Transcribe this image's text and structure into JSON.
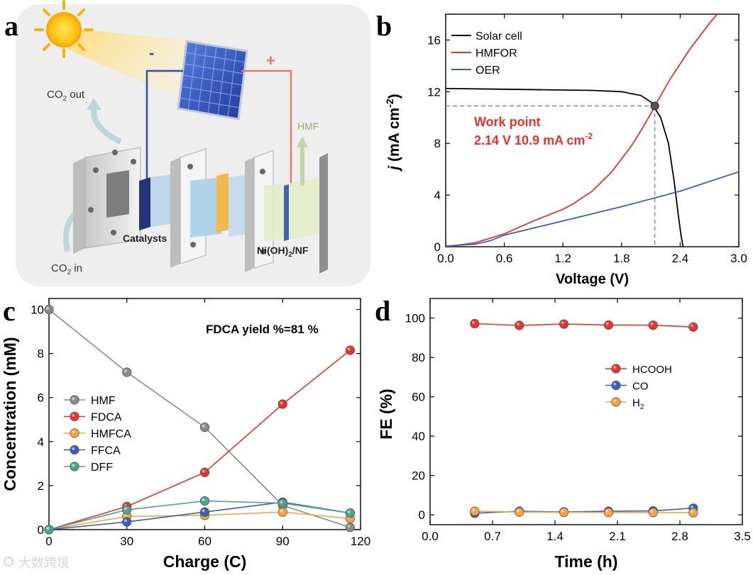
{
  "panels": {
    "a": "a",
    "b": "b",
    "c": "c",
    "d": "d"
  },
  "schematic": {
    "minus": "-",
    "plus": "+",
    "co2_out": "CO",
    "co2_out_sub": "2",
    "co2_out_tail": " out",
    "co2_in": "CO",
    "co2_in_sub": "2",
    "co2_in_tail": " in",
    "hmf": "HMF",
    "catalysts": "Catalysts",
    "ni_label_a": "Ni(OH)",
    "ni_label_sub": "2",
    "ni_label_b": "/NF"
  },
  "watermark": "大数跨境",
  "colors": {
    "black": "#000000",
    "red": "#e8322b",
    "blue": "#3a5fb5",
    "gray": "#8a8a8a",
    "orange": "#f4a540",
    "teal": "#4aa58f"
  },
  "chart_data": [
    {
      "id": "b",
      "type": "line",
      "xlabel": "Voltage (V)",
      "ylabel_italic": "j",
      "ylabel_rest": " (mA cm",
      "ylabel_sup": "-2",
      "ylabel_close": ")",
      "xlim": [
        0.0,
        3.0
      ],
      "ylim": [
        0,
        18
      ],
      "xticks": [
        "0.0",
        "0.6",
        "1.2",
        "1.8",
        "2.4",
        "3.0"
      ],
      "yticks": [
        "0",
        "4",
        "8",
        "12",
        "16"
      ],
      "xtick_values": [
        0.0,
        0.6,
        1.2,
        1.8,
        2.4,
        3.0
      ],
      "ytick_values": [
        0,
        4,
        8,
        12,
        16
      ],
      "legend_position": "top-left",
      "series": [
        {
          "name": "Solar cell",
          "color": "#000000",
          "x": [
            0.0,
            0.5,
            1.0,
            1.5,
            1.8,
            2.0,
            2.1,
            2.2,
            2.28,
            2.34,
            2.38,
            2.41,
            2.43
          ],
          "y": [
            12.25,
            12.2,
            12.15,
            12.1,
            12.0,
            11.7,
            11.2,
            10.0,
            8.0,
            5.0,
            2.5,
            0.8,
            0
          ]
        },
        {
          "name": "HMFOR",
          "color": "#e8322b",
          "x": [
            0.0,
            0.3,
            0.6,
            0.9,
            1.2,
            1.3,
            1.5,
            1.7,
            1.9,
            2.0,
            2.1,
            2.14,
            2.3,
            2.5,
            2.7,
            2.8
          ],
          "y": [
            0.0,
            0.3,
            1.0,
            2.0,
            2.9,
            3.3,
            4.3,
            5.8,
            7.8,
            9.0,
            10.3,
            10.9,
            13.0,
            15.3,
            17.3,
            18.2
          ]
        },
        {
          "name": "OER",
          "color": "#3a5fb5",
          "x": [
            0.0,
            0.3,
            0.45,
            0.6,
            1.2,
            1.8,
            2.4,
            3.0
          ],
          "y": [
            0.05,
            0.2,
            0.45,
            0.9,
            2.0,
            3.1,
            4.3,
            5.8
          ]
        }
      ],
      "work_point": {
        "x": 2.14,
        "y": 10.9,
        "label_line1": "Work point",
        "label_line2": "2.14 V 10.9 mA cm",
        "label_sup": "-2"
      }
    },
    {
      "id": "c",
      "type": "line",
      "xlabel": "Charge (C)",
      "ylabel": "Concentration (mM)",
      "xlim": [
        0,
        120
      ],
      "ylim": [
        0,
        10.5
      ],
      "xticks": [
        "0",
        "30",
        "60",
        "90",
        "120"
      ],
      "yticks": [
        "0",
        "2",
        "4",
        "6",
        "8",
        "10"
      ],
      "xtick_values": [
        0,
        30,
        60,
        90,
        120
      ],
      "ytick_values": [
        0,
        2,
        4,
        6,
        8,
        10
      ],
      "annotation": "FDCA yield %=81 %",
      "legend_position": "left-middle",
      "x": [
        0,
        30,
        60,
        90,
        116
      ],
      "series": [
        {
          "name": "HMF",
          "color": "#8a8a8a",
          "values": [
            10.0,
            7.15,
            4.65,
            1.1,
            0.1
          ]
        },
        {
          "name": "FDCA",
          "color": "#e8322b",
          "values": [
            0,
            1.05,
            2.6,
            5.7,
            8.15
          ]
        },
        {
          "name": "HMFCA",
          "color": "#f4a540",
          "values": [
            0,
            0.6,
            0.65,
            0.8,
            0.5
          ]
        },
        {
          "name": "FFCA",
          "color": "#3a5fb5",
          "values": [
            0,
            0.35,
            0.8,
            1.25,
            0.75
          ]
        },
        {
          "name": "DFF",
          "color": "#4aa58f",
          "values": [
            0,
            0.9,
            1.3,
            1.2,
            0.75
          ]
        }
      ]
    },
    {
      "id": "d",
      "type": "line",
      "xlabel": "Time (h)",
      "ylabel": "FE (%)",
      "xlim": [
        0.0,
        3.5
      ],
      "ylim": [
        -5,
        110
      ],
      "xticks": [
        "0.0",
        "0.7",
        "1.4",
        "2.1",
        "2.8",
        "3.5"
      ],
      "yticks": [
        "0",
        "20",
        "40",
        "60",
        "80",
        "100"
      ],
      "xtick_values": [
        0.0,
        0.7,
        1.4,
        2.1,
        2.8,
        3.5
      ],
      "ytick_values": [
        0,
        20,
        40,
        60,
        80,
        100
      ],
      "legend_position": "middle",
      "x": [
        0.5,
        1.0,
        1.5,
        2.0,
        2.5,
        2.95
      ],
      "series": [
        {
          "name": "HCOOH",
          "name_sub": "",
          "color": "#e8322b",
          "values": [
            97.2,
            96.3,
            97.0,
            96.5,
            96.4,
            95.5
          ]
        },
        {
          "name": "CO",
          "name_sub": "",
          "color": "#3a5fb5",
          "values": [
            0.8,
            1.8,
            1.5,
            1.8,
            2.0,
            3.4
          ]
        },
        {
          "name": "H",
          "name_sub": "2",
          "color": "#f4a540",
          "values": [
            1.8,
            1.4,
            1.3,
            1.2,
            1.2,
            1.1
          ]
        }
      ]
    }
  ]
}
